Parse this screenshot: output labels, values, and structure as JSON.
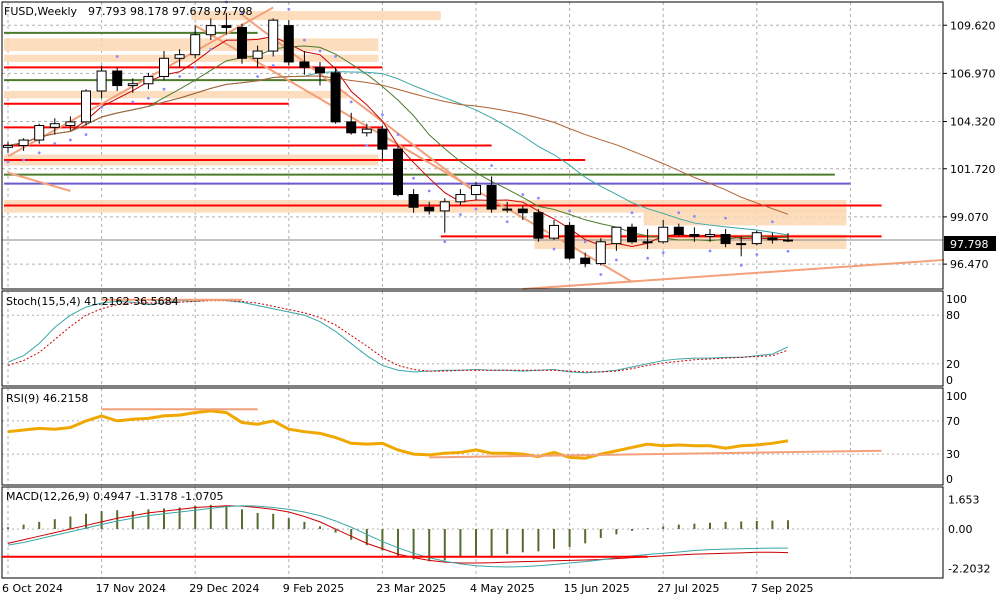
{
  "header": {
    "symbol_text": "FUSD,Weekly",
    "ohlc_text": "97.793 98.178 97.678 97.798"
  },
  "current_price_label": "97.798",
  "panels": {
    "stoch": {
      "label": "Stoch(15,5,4) 41.2162 36.5684",
      "ticks": [
        "100",
        "80",
        "20",
        "0"
      ]
    },
    "rsi": {
      "label": "RSI(9) 46.2158",
      "ticks": [
        "100",
        "70",
        "30",
        "0"
      ]
    },
    "macd": {
      "label": "MACD(12,26,9) 0.4947 -1.3178 -1.0705",
      "ticks": [
        "1.653",
        "0.00",
        "-2.2032"
      ]
    }
  },
  "colors": {
    "up_candle": "#ffffff",
    "down_candle": "#000000",
    "red_line": "#ff0000",
    "ma_fast": "#cc0000",
    "ma_green": "#4c7a2b",
    "ma_teal": "#3aa6a6",
    "ma_brown": "#b06030",
    "zone_fill": "#fbd8b4",
    "trendline": "#f4a07a",
    "psar": "#8a8aff",
    "stoch_main": "#3aa6a6",
    "stoch_signal": "#cc0000",
    "rsi_line": "#f0a800",
    "macd_hist": "#556b2f",
    "grid": "#b0b0b0"
  },
  "chart_data": {
    "type": "candlestick",
    "x_labels": [
      "6 Oct 2024",
      "17 Nov 2024",
      "29 Dec 2024",
      "9 Feb 2025",
      "23 Mar 2025",
      "4 May 2025",
      "15 Jun 2025",
      "27 Jul 2025",
      "7 Sep 2025"
    ],
    "y_ticks": [
      "109.620",
      "106.970",
      "104.320",
      "101.720",
      "99.070",
      "96.470"
    ],
    "y_range": [
      95.1,
      110.9
    ],
    "candles": [
      [
        102.9,
        103.2,
        102.6,
        103.0
      ],
      [
        103.0,
        103.4,
        102.7,
        103.3
      ],
      [
        103.3,
        104.2,
        103.1,
        104.1
      ],
      [
        104.0,
        104.5,
        103.6,
        104.2
      ],
      [
        104.1,
        104.6,
        103.8,
        104.3
      ],
      [
        104.3,
        106.1,
        104.1,
        106.0
      ],
      [
        106.0,
        107.4,
        105.6,
        107.1
      ],
      [
        107.1,
        107.3,
        106.0,
        106.3
      ],
      [
        106.3,
        106.7,
        105.9,
        106.4
      ],
      [
        106.4,
        107.0,
        106.1,
        106.8
      ],
      [
        106.8,
        108.2,
        106.6,
        107.8
      ],
      [
        107.8,
        108.3,
        107.3,
        108.0
      ],
      [
        108.0,
        109.6,
        107.8,
        109.1
      ],
      [
        109.1,
        110.0,
        108.8,
        109.6
      ],
      [
        109.6,
        110.3,
        109.1,
        109.5
      ],
      [
        109.5,
        109.7,
        107.5,
        107.8
      ],
      [
        107.8,
        108.5,
        107.3,
        108.2
      ],
      [
        108.2,
        110.0,
        107.9,
        109.9
      ],
      [
        109.6,
        109.9,
        107.4,
        107.6
      ],
      [
        107.6,
        108.2,
        106.9,
        107.3
      ],
      [
        107.3,
        107.6,
        106.3,
        107.0
      ],
      [
        107.0,
        107.3,
        104.2,
        104.3
      ],
      [
        104.3,
        104.8,
        103.6,
        103.7
      ],
      [
        103.7,
        104.2,
        103.5,
        103.9
      ],
      [
        103.9,
        104.1,
        102.1,
        102.8
      ],
      [
        102.8,
        103.0,
        100.2,
        100.3
      ],
      [
        100.3,
        100.6,
        99.3,
        99.6
      ],
      [
        99.6,
        99.9,
        99.2,
        99.4
      ],
      [
        99.4,
        100.1,
        98.2,
        99.9
      ],
      [
        99.9,
        100.6,
        99.7,
        100.3
      ],
      [
        100.3,
        101.0,
        100.0,
        100.8
      ],
      [
        100.8,
        101.3,
        99.3,
        99.5
      ],
      [
        99.5,
        99.9,
        99.3,
        99.5
      ],
      [
        99.5,
        99.7,
        98.9,
        99.3
      ],
      [
        99.3,
        99.5,
        97.7,
        97.9
      ],
      [
        97.9,
        98.9,
        97.8,
        98.6
      ],
      [
        98.6,
        98.8,
        96.7,
        96.8
      ],
      [
        96.8,
        97.1,
        96.3,
        96.5
      ],
      [
        96.5,
        97.9,
        96.4,
        97.7
      ],
      [
        97.6,
        98.5,
        97.2,
        98.5
      ],
      [
        98.5,
        98.7,
        97.6,
        97.7
      ],
      [
        97.7,
        98.4,
        97.3,
        97.7
      ],
      [
        97.7,
        98.9,
        97.6,
        98.5
      ],
      [
        98.5,
        98.7,
        98.0,
        98.1
      ],
      [
        98.1,
        98.5,
        97.7,
        98.0
      ],
      [
        98.0,
        98.4,
        97.7,
        98.1
      ],
      [
        98.1,
        98.4,
        97.4,
        97.6
      ],
      [
        97.6,
        98.0,
        96.9,
        97.6
      ],
      [
        97.6,
        98.3,
        97.5,
        98.2
      ],
      [
        97.9,
        98.2,
        97.6,
        97.8
      ],
      [
        97.793,
        98.178,
        97.678,
        97.798
      ]
    ],
    "stoch_main": [
      22,
      30,
      45,
      65,
      80,
      90,
      95,
      97,
      96,
      93,
      95,
      98,
      97,
      99,
      98,
      96,
      92,
      88,
      84,
      80,
      72,
      60,
      45,
      30,
      18,
      12,
      10,
      11,
      12,
      12,
      13,
      12,
      12,
      11,
      12,
      13,
      10,
      9,
      10,
      12,
      16,
      20,
      24,
      26,
      27,
      27,
      28,
      28,
      30,
      32,
      41
    ],
    "stoch_signal": [
      18,
      24,
      34,
      50,
      66,
      80,
      88,
      93,
      95,
      95,
      95,
      96,
      97,
      98,
      98,
      97,
      95,
      91,
      87,
      83,
      77,
      68,
      55,
      42,
      28,
      18,
      13,
      11,
      11,
      12,
      12,
      12,
      12,
      12,
      12,
      12,
      11,
      10,
      10,
      11,
      14,
      18,
      21,
      23,
      25,
      26,
      27,
      28,
      29,
      30,
      37
    ],
    "rsi": [
      57,
      59,
      61,
      60,
      62,
      70,
      76,
      70,
      72,
      73,
      76,
      77,
      80,
      82,
      80,
      68,
      66,
      70,
      60,
      57,
      55,
      50,
      43,
      42,
      43,
      35,
      30,
      29,
      31,
      32,
      35,
      31,
      31,
      30,
      27,
      32,
      26,
      25,
      30,
      34,
      38,
      42,
      40,
      41,
      40,
      40,
      37,
      40,
      41,
      43,
      46
    ],
    "macd_hist": [
      0.1,
      0.25,
      0.4,
      0.55,
      0.7,
      0.85,
      1.0,
      1.05,
      1.0,
      1.1,
      1.15,
      1.2,
      1.3,
      1.35,
      1.3,
      1.1,
      0.9,
      0.85,
      0.6,
      0.4,
      0.15,
      -0.2,
      -0.6,
      -0.9,
      -1.2,
      -1.5,
      -1.7,
      -1.8,
      -1.75,
      -1.6,
      -1.5,
      -1.5,
      -1.4,
      -1.3,
      -1.25,
      -1.1,
      -1.0,
      -0.8,
      -0.5,
      -0.3,
      -0.1,
      0.05,
      0.15,
      0.25,
      0.3,
      0.35,
      0.4,
      0.42,
      0.45,
      0.47,
      0.49
    ],
    "macd_signal": [
      -0.8,
      -0.6,
      -0.4,
      -0.2,
      0.0,
      0.2,
      0.4,
      0.6,
      0.75,
      0.9,
      1.0,
      1.1,
      1.2,
      1.25,
      1.3,
      1.28,
      1.2,
      1.1,
      0.95,
      0.7,
      0.4,
      0.0,
      -0.4,
      -0.8,
      -1.1,
      -1.4,
      -1.6,
      -1.75,
      -1.85,
      -1.9,
      -1.9,
      -1.88,
      -1.85,
      -1.82,
      -1.8,
      -1.77,
      -1.75,
      -1.73,
      -1.7,
      -1.65,
      -1.6,
      -1.55,
      -1.5,
      -1.45,
      -1.4,
      -1.38,
      -1.35,
      -1.33,
      -1.3,
      -1.3,
      -1.32
    ],
    "macd_signal2": [
      -0.9,
      -0.75,
      -0.55,
      -0.35,
      -0.15,
      0.05,
      0.25,
      0.45,
      0.6,
      0.75,
      0.85,
      0.95,
      1.05,
      1.15,
      1.25,
      1.3,
      1.28,
      1.2,
      1.1,
      0.95,
      0.75,
      0.45,
      0.1,
      -0.3,
      -0.7,
      -1.05,
      -1.35,
      -1.6,
      -1.8,
      -1.95,
      -2.05,
      -2.1,
      -2.12,
      -2.1,
      -2.05,
      -1.98,
      -1.9,
      -1.82,
      -1.72,
      -1.6,
      -1.5,
      -1.42,
      -1.35,
      -1.28,
      -1.2,
      -1.15,
      -1.12,
      -1.1,
      -1.08,
      -1.07,
      -1.07
    ]
  }
}
